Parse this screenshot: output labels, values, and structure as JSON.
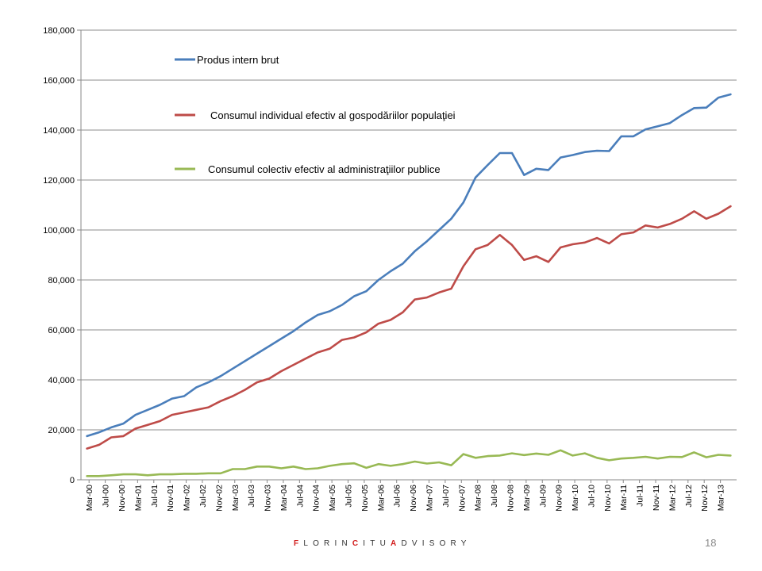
{
  "chart_data": {
    "type": "line",
    "title": "",
    "xlabel": "",
    "ylabel": "",
    "ylim": [
      0,
      180000
    ],
    "yticks": [
      0,
      20000,
      40000,
      60000,
      80000,
      100000,
      120000,
      140000,
      160000,
      180000
    ],
    "ytick_labels": [
      "0",
      "20,000",
      "40,000",
      "60,000",
      "80,000",
      "100,000",
      "120,000",
      "140,000",
      "160,000",
      "180,000"
    ],
    "grid": true,
    "legend_position": "top-left inside",
    "x": [
      "Mar-00",
      "Jun-00",
      "Sep-00",
      "Dec-00",
      "Mar-01",
      "Jun-01",
      "Sep-01",
      "Dec-01",
      "Mar-02",
      "Jun-02",
      "Sep-02",
      "Dec-02",
      "Mar-03",
      "Jun-03",
      "Sep-03",
      "Dec-03",
      "Mar-04",
      "Jun-04",
      "Sep-04",
      "Dec-04",
      "Mar-05",
      "Jun-05",
      "Sep-05",
      "Dec-05",
      "Mar-06",
      "Jun-06",
      "Sep-06",
      "Dec-06",
      "Mar-07",
      "Jun-07",
      "Sep-07",
      "Dec-07",
      "Mar-08",
      "Jun-08",
      "Sep-08",
      "Dec-08",
      "Mar-09",
      "Jun-09",
      "Sep-09",
      "Dec-09",
      "Mar-10",
      "Jun-10",
      "Sep-10",
      "Dec-10",
      "Mar-11",
      "Jun-11",
      "Sep-11",
      "Dec-11",
      "Mar-12",
      "Jun-12",
      "Sep-12",
      "Dec-12",
      "Mar-13",
      "Jun-13"
    ],
    "tick_labels": [
      "Mar-00",
      "Jul-00",
      "Nov-00",
      "Mar-01",
      "Jul-01",
      "Nov-01",
      "Mar-02",
      "Jul-02",
      "Nov-02",
      "Mar-03",
      "Jul-03",
      "Nov-03",
      "Mar-04",
      "Jul-04",
      "Nov-04",
      "Mar-05",
      "Jul-05",
      "Nov-05",
      "Mar-06",
      "Jul-06",
      "Nov-06",
      "Mar-07",
      "Jul-07",
      "Nov-07",
      "Mar-08",
      "Jul-08",
      "Nov-08",
      "Mar-09",
      "Jul-09",
      "Nov-09",
      "Mar-10",
      "Jul-10",
      "Nov-10",
      "Mar-11",
      "Jul-11",
      "Nov-11",
      "Mar-12",
      "Jul-12",
      "Nov-12",
      "Mar-13"
    ],
    "series": [
      {
        "name": "Produs intern brut",
        "color": "#4a7ebb",
        "values": [
          17500,
          19000,
          21000,
          22500,
          26000,
          28000,
          30000,
          32500,
          33500,
          37000,
          39000,
          41500,
          44500,
          47500,
          50500,
          53500,
          56500,
          59500,
          63000,
          66000,
          67500,
          70000,
          73500,
          75500,
          80000,
          83500,
          86500,
          91500,
          95500,
          100000,
          104500,
          111000,
          121000,
          126000,
          130800,
          130800,
          122000,
          124500,
          124000,
          129000,
          130000,
          131200,
          131700,
          131600,
          137500,
          137500,
          140300,
          141500,
          142800,
          146000,
          148800,
          149000,
          153000,
          154300
        ]
      },
      {
        "name": "Consumul individual efectiv al gospodăriilor populaţiei",
        "color": "#be4b48",
        "values": [
          12500,
          14000,
          17000,
          17500,
          20500,
          22000,
          23500,
          26000,
          27000,
          28000,
          29000,
          31500,
          33500,
          36000,
          39000,
          40500,
          43500,
          46000,
          48500,
          51000,
          52500,
          56000,
          57000,
          59000,
          62500,
          64000,
          67000,
          72200,
          73000,
          75000,
          76500,
          85500,
          92300,
          94000,
          98000,
          94000,
          88000,
          89500,
          87200,
          93000,
          94300,
          95000,
          96800,
          94600,
          98300,
          99000,
          101800,
          101000,
          102400,
          104500,
          107500,
          104500,
          106500,
          109500
        ]
      },
      {
        "name": "Consumul colectiv efectiv al administraţiilor publice",
        "color": "#98b954",
        "values": [
          1500,
          1500,
          1800,
          2200,
          2200,
          1800,
          2200,
          2200,
          2400,
          2400,
          2600,
          2600,
          4300,
          4300,
          5300,
          5300,
          4600,
          5300,
          4300,
          4600,
          5600,
          6300,
          6600,
          4800,
          6300,
          5600,
          6300,
          7300,
          6500,
          7000,
          5800,
          10300,
          8800,
          9500,
          9700,
          10600,
          9900,
          10500,
          10000,
          11800,
          9700,
          10600,
          8800,
          7800,
          8500,
          8800,
          9200,
          8500,
          9200,
          9100,
          11000,
          9000,
          10000,
          9700
        ]
      }
    ]
  },
  "footer": {
    "brand_parts": [
      {
        "text": "F",
        "accent": true
      },
      {
        "text": "LORIN",
        "accent": false
      },
      {
        "text": "C",
        "accent": true
      },
      {
        "text": "ITU",
        "accent": false
      },
      {
        "text": "A",
        "accent": true
      },
      {
        "text": "DVISORY",
        "accent": false
      }
    ],
    "page_number": "18"
  }
}
